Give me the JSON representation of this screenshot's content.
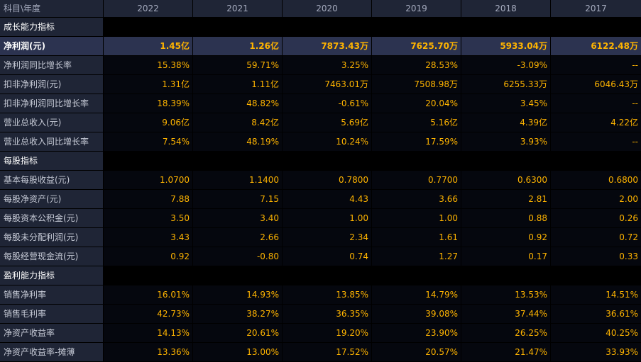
{
  "header": {
    "label": "科目\\年度",
    "years": [
      "2022",
      "2021",
      "2020",
      "2019",
      "2018",
      "2017"
    ]
  },
  "rows": [
    {
      "type": "section",
      "label": "成长能力指标"
    },
    {
      "type": "highlight",
      "label": "净利润(元)",
      "values": [
        "1.45亿",
        "1.26亿",
        "7873.43万",
        "7625.70万",
        "5933.04万",
        "6122.48万"
      ]
    },
    {
      "type": "data",
      "label": "净利润同比增长率",
      "values": [
        "15.38%",
        "59.71%",
        "3.25%",
        "28.53%",
        "-3.09%",
        "--"
      ]
    },
    {
      "type": "data",
      "label": "扣非净利润(元)",
      "values": [
        "1.31亿",
        "1.11亿",
        "7463.01万",
        "7508.98万",
        "6255.33万",
        "6046.43万"
      ]
    },
    {
      "type": "data",
      "label": "扣非净利润同比增长率",
      "values": [
        "18.39%",
        "48.82%",
        "-0.61%",
        "20.04%",
        "3.45%",
        "--"
      ]
    },
    {
      "type": "data",
      "label": "营业总收入(元)",
      "values": [
        "9.06亿",
        "8.42亿",
        "5.69亿",
        "5.16亿",
        "4.39亿",
        "4.22亿"
      ]
    },
    {
      "type": "data",
      "label": "营业总收入同比增长率",
      "values": [
        "7.54%",
        "48.19%",
        "10.24%",
        "17.59%",
        "3.93%",
        "--"
      ]
    },
    {
      "type": "section",
      "label": "每股指标"
    },
    {
      "type": "data",
      "label": "基本每股收益(元)",
      "values": [
        "1.0700",
        "1.1400",
        "0.7800",
        "0.7700",
        "0.6300",
        "0.6800"
      ]
    },
    {
      "type": "data",
      "label": "每股净资产(元)",
      "values": [
        "7.88",
        "7.15",
        "4.43",
        "3.66",
        "2.81",
        "2.00"
      ]
    },
    {
      "type": "data",
      "label": "每股资本公积金(元)",
      "values": [
        "3.50",
        "3.40",
        "1.00",
        "1.00",
        "0.88",
        "0.26"
      ]
    },
    {
      "type": "data",
      "label": "每股未分配利润(元)",
      "values": [
        "3.43",
        "2.66",
        "2.34",
        "1.61",
        "0.92",
        "0.72"
      ]
    },
    {
      "type": "data",
      "label": "每股经营现金流(元)",
      "values": [
        "0.92",
        "-0.80",
        "0.74",
        "1.27",
        "0.17",
        "0.33"
      ]
    },
    {
      "type": "section",
      "label": "盈利能力指标"
    },
    {
      "type": "data",
      "label": "销售净利率",
      "values": [
        "16.01%",
        "14.93%",
        "13.85%",
        "14.79%",
        "13.53%",
        "14.51%"
      ]
    },
    {
      "type": "data",
      "label": "销售毛利率",
      "values": [
        "42.73%",
        "38.27%",
        "36.35%",
        "39.08%",
        "37.44%",
        "36.61%"
      ]
    },
    {
      "type": "data",
      "label": "净资产收益率",
      "values": [
        "14.13%",
        "20.61%",
        "19.20%",
        "23.90%",
        "26.25%",
        "40.25%"
      ]
    },
    {
      "type": "data",
      "label": "净资产收益率-摊薄",
      "values": [
        "13.36%",
        "13.00%",
        "17.52%",
        "20.57%",
        "21.47%",
        "33.93%"
      ]
    }
  ]
}
